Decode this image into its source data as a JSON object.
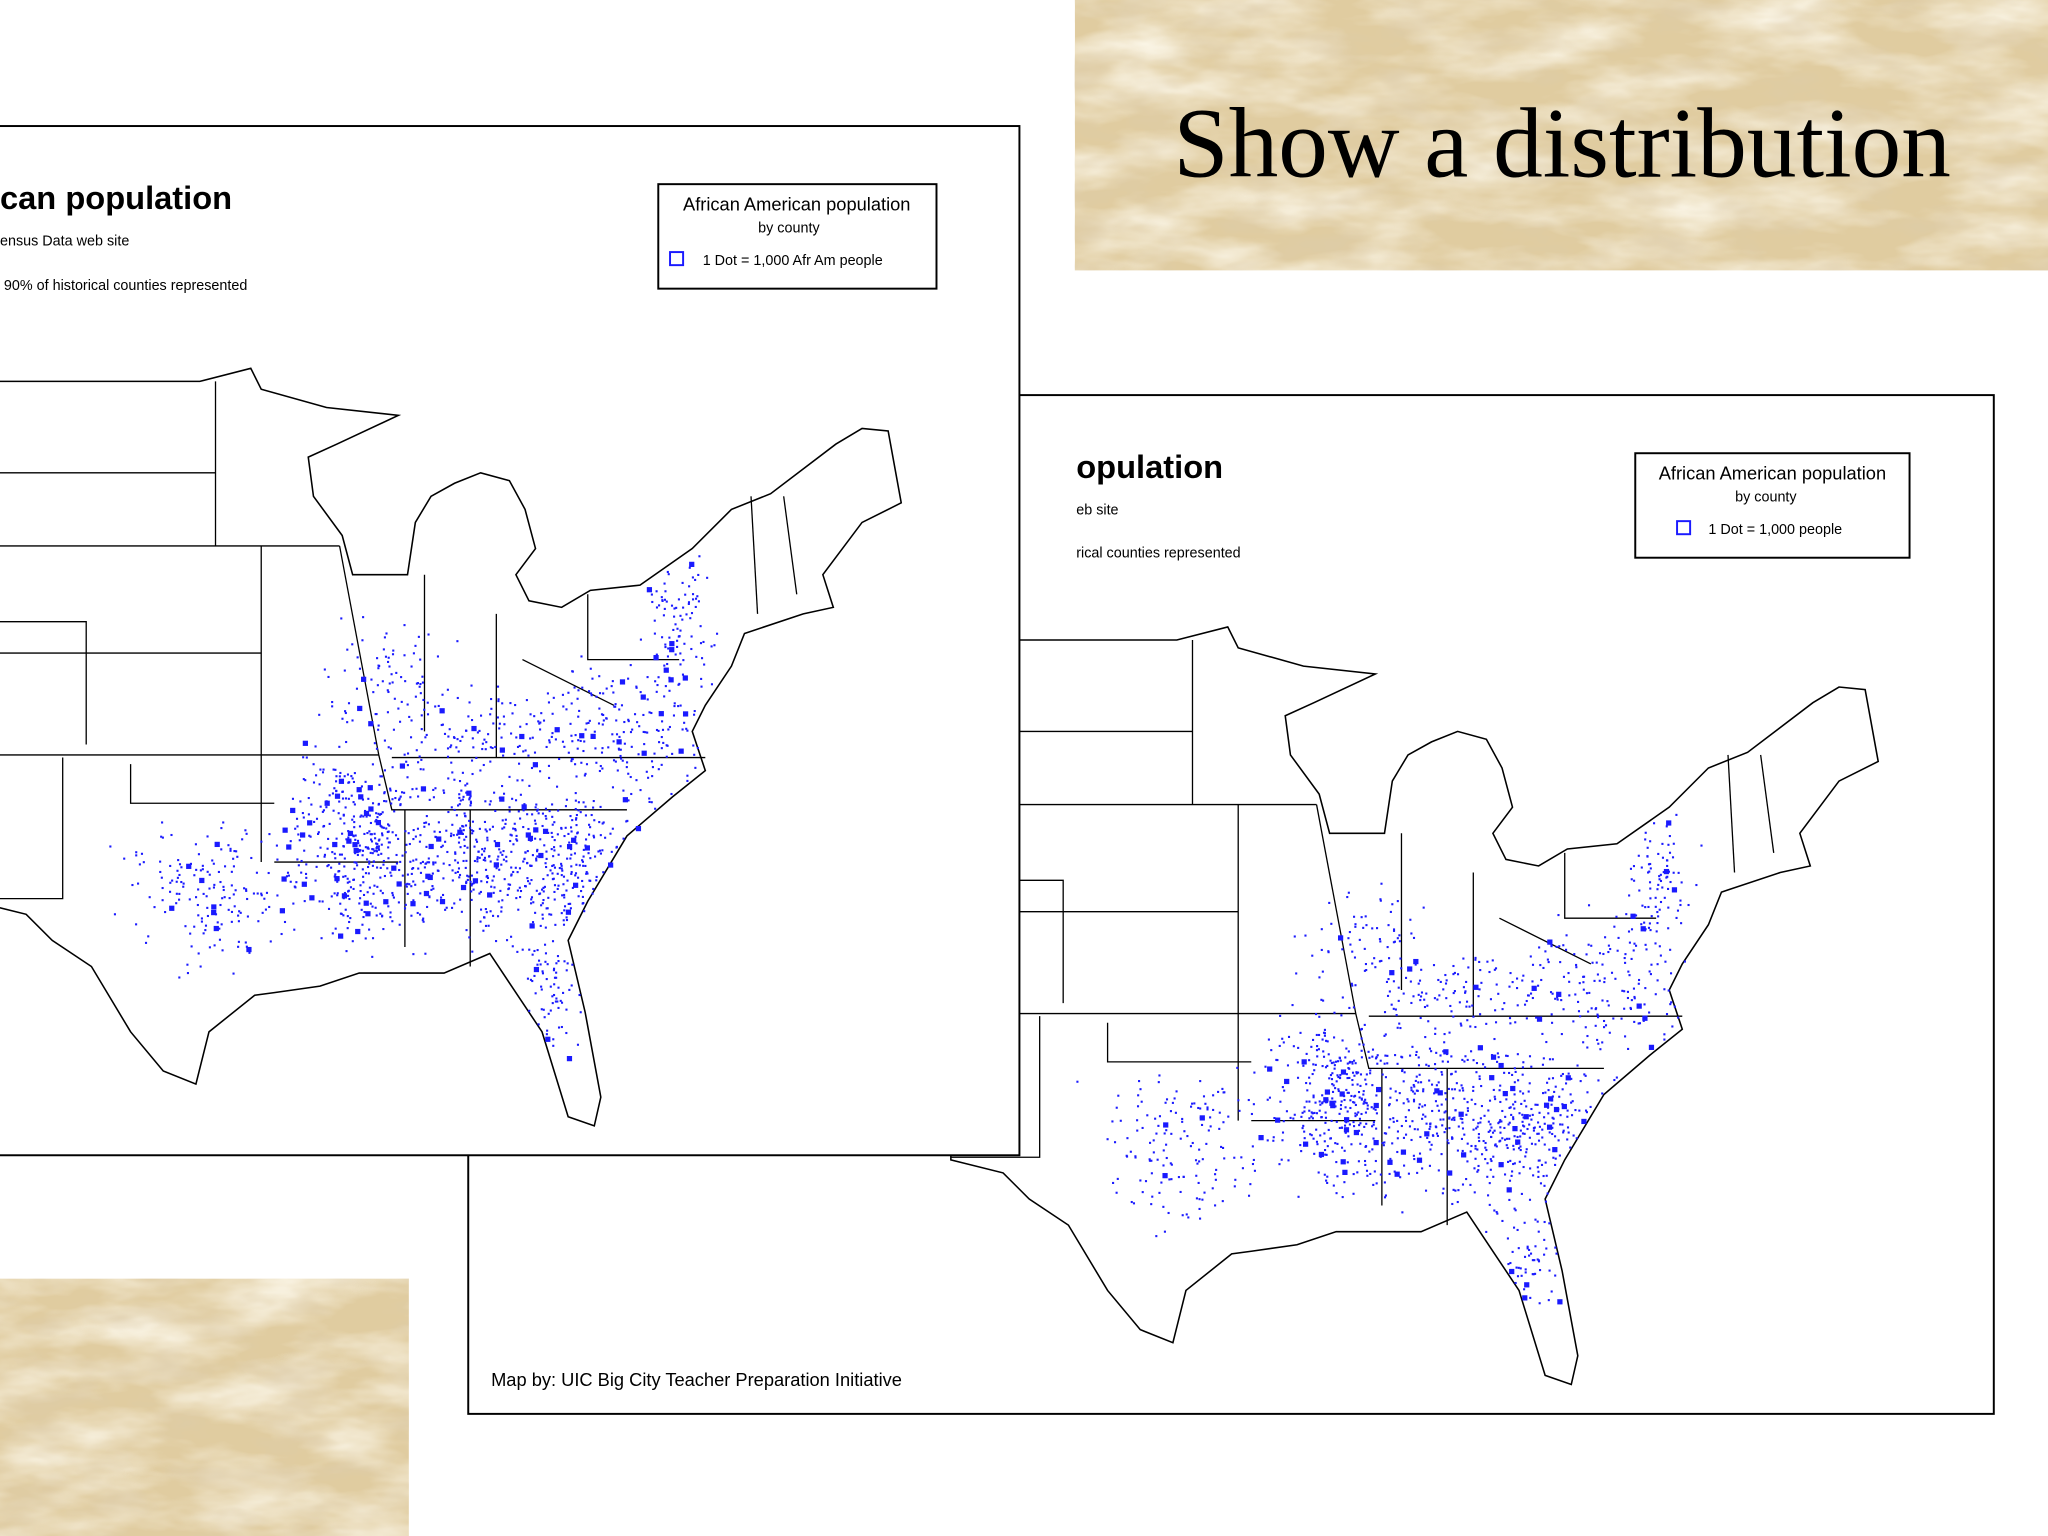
{
  "slide": {
    "title": "Show a distribution"
  },
  "maps": [
    {
      "title": "can population",
      "source": "ensus Data web site",
      "note": "90% of historical counties represented",
      "legend": {
        "title": "African American population",
        "subtitle": "by county",
        "key": "1 Dot = 1,000 Afr Am people"
      }
    },
    {
      "title": "opulation",
      "source": "eb site",
      "note": "rical counties represented",
      "legend": {
        "title": "African American population",
        "subtitle": "by county",
        "key": "1 Dot = 1,000 people"
      },
      "credit": "Map by:  UIC Big City Teacher Preparation Initiative"
    }
  ]
}
